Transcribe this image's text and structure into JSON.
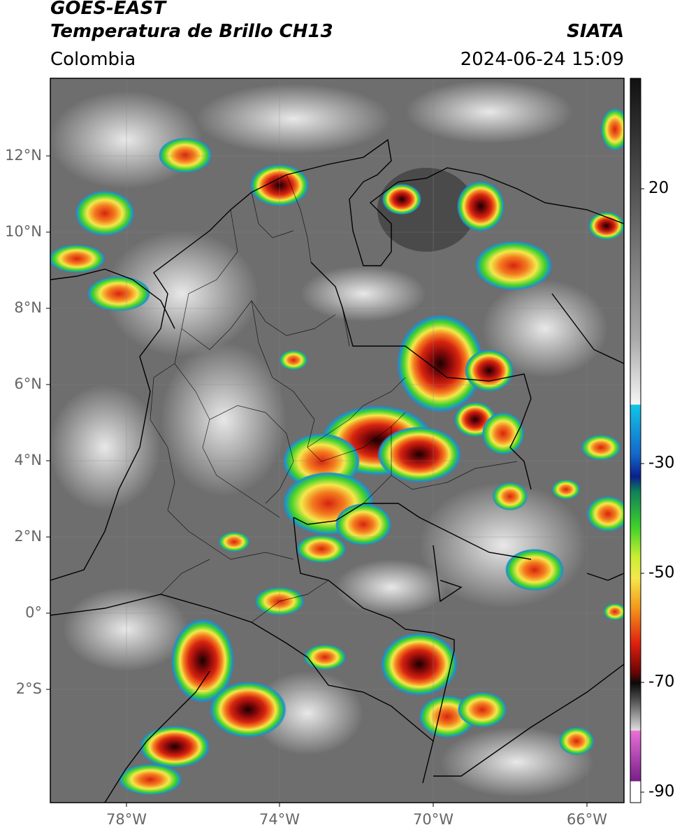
{
  "header": {
    "satellite": "GOES-EAST",
    "product": "Temperatura de Brillo CH13",
    "brand": "SIATA",
    "region": "Colombia",
    "timestamp": "2024-06-24 15:09"
  },
  "map": {
    "lat_labels": [
      "12°N",
      "10°N",
      "8°N",
      "6°N",
      "4°N",
      "2°N",
      "0°",
      "2°S"
    ],
    "lon_labels": [
      "78°W",
      "74°W",
      "70°W",
      "66°W"
    ]
  },
  "colorbar": {
    "tick_labels": [
      "20",
      "-30",
      "-50",
      "-70",
      "-90"
    ],
    "colors": {
      "cold_top": "#8b0a0a",
      "core": "#1a0000",
      "warm_clear": "#6e6e6e",
      "green": "#3fd22a",
      "yellow": "#f4e84a",
      "magenta": "#d25fc8"
    }
  }
}
